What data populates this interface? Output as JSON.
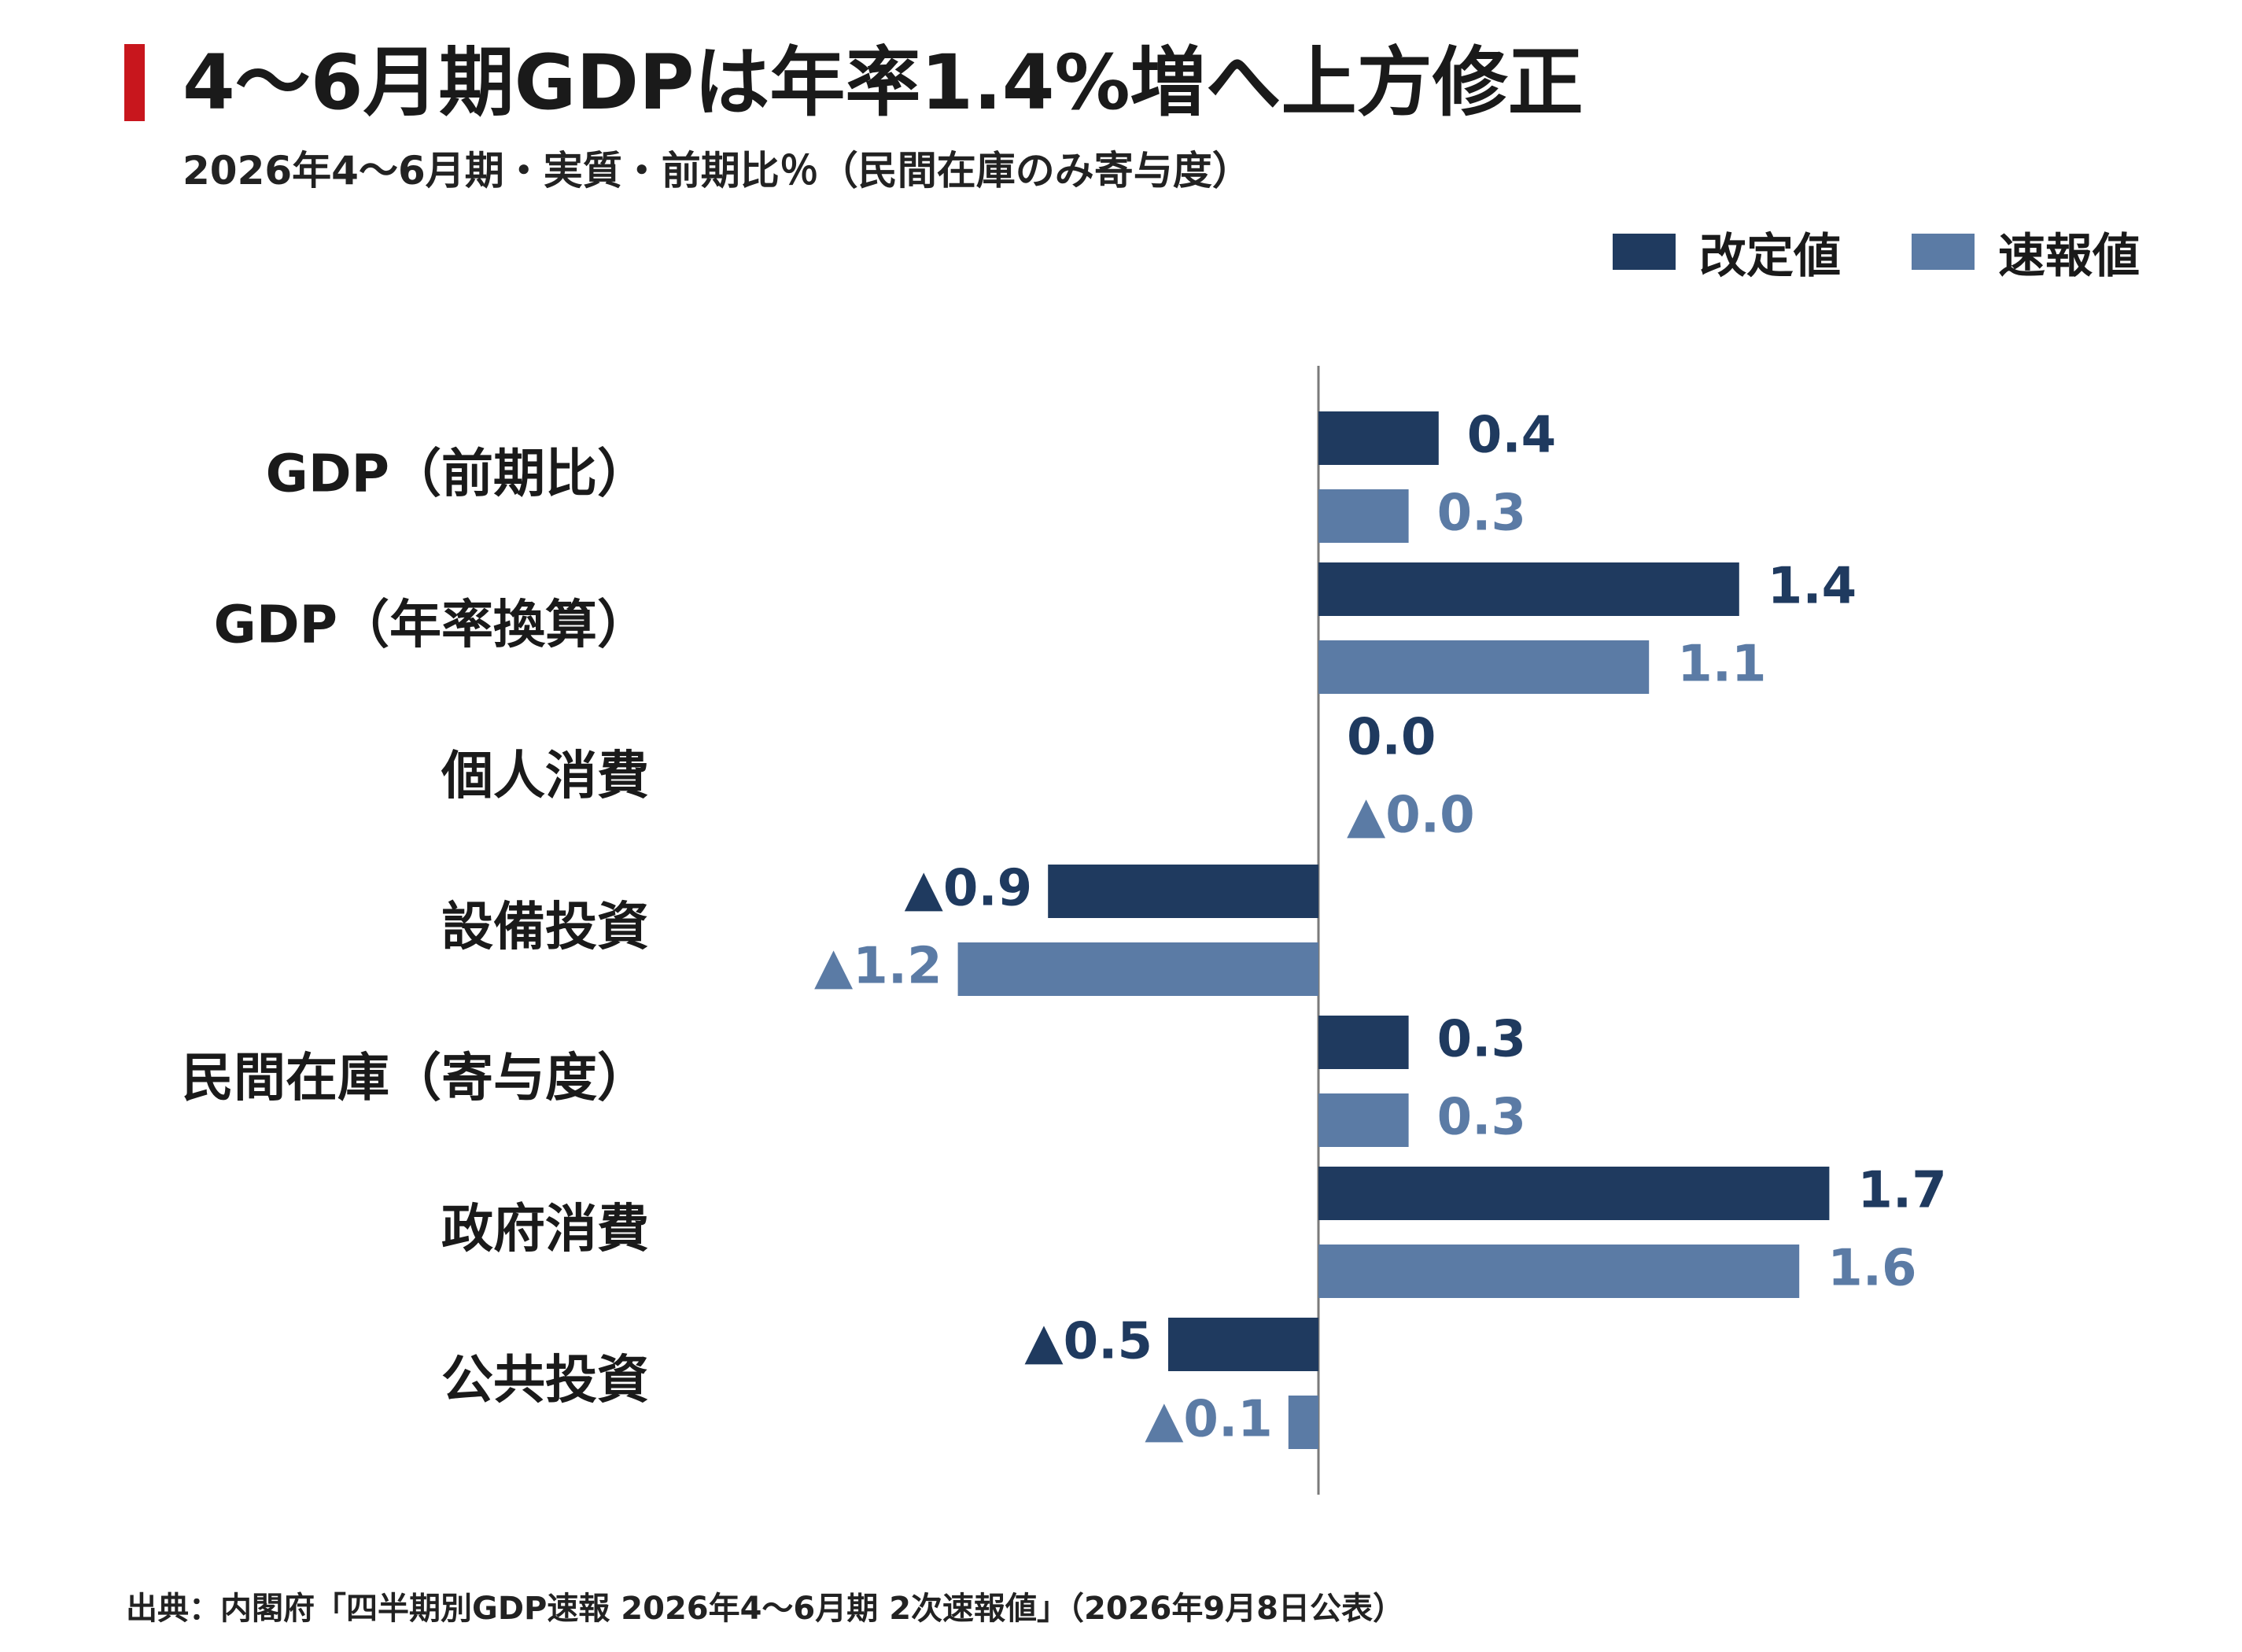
{
  "header": {
    "title": "4～6月期GDPは年率1.4%増へ上方修正",
    "subtitle": "2026年4～6月期・実質・前期比％（民間在庫のみ寄与度）"
  },
  "legend": [
    {
      "label": "改定値",
      "color": "#1f3a5f"
    },
    {
      "label": "速報値",
      "color": "#5b7ba5"
    }
  ],
  "footer": {
    "source": "出典：内閣府「四半期別GDP速報 2026年4～6月期 2次速報値」（2026年9月8日公表）"
  },
  "chart_data": {
    "type": "bar",
    "orientation": "horizontal",
    "negative_prefix": "▲",
    "categories": [
      "GDP（前期比）",
      "GDP（年率換算）",
      "個人消費",
      "設備投資",
      "民間在庫（寄与度）",
      "政府消費",
      "公共投資"
    ],
    "series": [
      {
        "name": "改定値",
        "color": "#1f3a5f",
        "values": [
          0.4,
          1.4,
          0.0,
          -0.9,
          0.3,
          1.7,
          -0.5
        ],
        "labels": [
          "0.4",
          "1.4",
          "0.0",
          "▲0.9",
          "0.3",
          "1.7",
          "▲0.5"
        ]
      },
      {
        "name": "速報値",
        "color": "#5b7ba5",
        "values": [
          0.3,
          1.1,
          -0.0,
          -1.2,
          0.3,
          1.6,
          -0.1
        ],
        "labels": [
          "0.3",
          "1.1",
          "▲0.0",
          "▲1.2",
          "0.3",
          "1.6",
          "▲0.1"
        ]
      }
    ],
    "xlim": [
      -2.0,
      2.3
    ],
    "grid": false,
    "legend_position": "top-right"
  }
}
